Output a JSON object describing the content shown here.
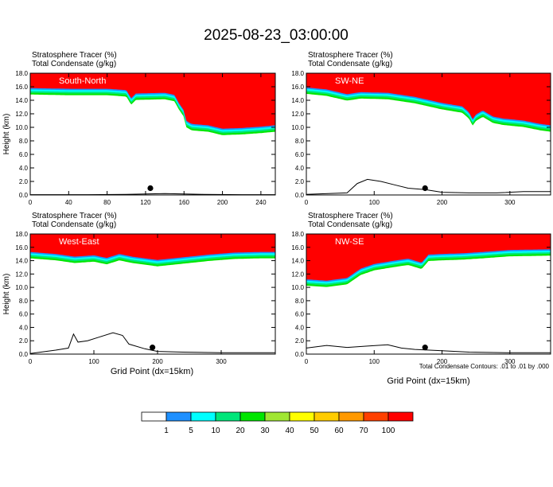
{
  "figure": {
    "title": "2025-08-23_03:00:00",
    "footnote": "Total Condensate Contours: .01 to .01 by .000"
  },
  "chart_data": [
    {
      "type": "heatmap",
      "panel_label": "South-North",
      "line1": "Stratosphere Tracer   (%)",
      "line2": "Total Condensate   (g/kg)",
      "ylabel": "Height (km)",
      "xlabel": "",
      "xlim": [
        0,
        255
      ],
      "ylim": [
        0,
        18
      ],
      "xticks": [
        0,
        40,
        80,
        120,
        160,
        200,
        240
      ],
      "yticks": [
        0.0,
        2.0,
        4.0,
        6.0,
        8.0,
        10.0,
        12.0,
        14.0,
        16.0,
        18.0
      ],
      "tropopause_km": [
        [
          0,
          15.8
        ],
        [
          40,
          15.7
        ],
        [
          80,
          15.7
        ],
        [
          90,
          15.6
        ],
        [
          100,
          15.5
        ],
        [
          105,
          14.3
        ],
        [
          110,
          15.0
        ],
        [
          140,
          15.1
        ],
        [
          150,
          14.8
        ],
        [
          155,
          13.5
        ],
        [
          160,
          12.5
        ],
        [
          162,
          11.0
        ],
        [
          168,
          10.5
        ],
        [
          185,
          10.3
        ],
        [
          200,
          9.8
        ],
        [
          220,
          9.9
        ],
        [
          240,
          10.1
        ],
        [
          255,
          10.3
        ]
      ],
      "terrain_km": [
        [
          0,
          0.05
        ],
        [
          60,
          0.05
        ],
        [
          100,
          0.1
        ],
        [
          140,
          0.2
        ],
        [
          180,
          0.1
        ],
        [
          220,
          0.05
        ],
        [
          255,
          0.05
        ]
      ],
      "marker_x": 125
    },
    {
      "type": "heatmap",
      "panel_label": "SW-NE",
      "line1": "Stratosphere Tracer   (%)",
      "line2": "Total Condensate   (g/kg)",
      "ylabel": "",
      "xlabel": "",
      "xlim": [
        0,
        360
      ],
      "ylim": [
        0,
        18
      ],
      "xticks": [
        0,
        100,
        200,
        300
      ],
      "yticks": [
        0.0,
        2.0,
        4.0,
        6.0,
        8.0,
        10.0,
        12.0,
        14.0,
        16.0,
        18.0
      ],
      "tropopause_km": [
        [
          0,
          15.9
        ],
        [
          30,
          15.6
        ],
        [
          60,
          14.9
        ],
        [
          80,
          15.2
        ],
        [
          120,
          15.1
        ],
        [
          160,
          14.5
        ],
        [
          200,
          13.6
        ],
        [
          230,
          13.1
        ],
        [
          240,
          12.2
        ],
        [
          245,
          11.2
        ],
        [
          250,
          11.9
        ],
        [
          260,
          12.5
        ],
        [
          275,
          11.6
        ],
        [
          290,
          11.3
        ],
        [
          320,
          11.0
        ],
        [
          345,
          10.5
        ],
        [
          360,
          10.3
        ]
      ],
      "terrain_km": [
        [
          0,
          0.1
        ],
        [
          60,
          0.3
        ],
        [
          75,
          1.7
        ],
        [
          90,
          2.3
        ],
        [
          110,
          2.0
        ],
        [
          130,
          1.5
        ],
        [
          150,
          1.0
        ],
        [
          175,
          0.8
        ],
        [
          200,
          0.4
        ],
        [
          240,
          0.3
        ],
        [
          280,
          0.3
        ],
        [
          320,
          0.5
        ],
        [
          360,
          0.5
        ]
      ],
      "marker_x": 175
    },
    {
      "type": "heatmap",
      "panel_label": "West-East",
      "line1": "Stratosphere Tracer   (%)",
      "line2": "Total Condensate   (g/kg)",
      "ylabel": "Height (km)",
      "xlabel": "",
      "xlim": [
        0,
        385
      ],
      "ylim": [
        0,
        18
      ],
      "xticks": [
        0,
        100,
        200,
        300
      ],
      "yticks": [
        0.0,
        2.0,
        4.0,
        6.0,
        8.0,
        10.0,
        12.0,
        14.0,
        16.0,
        18.0
      ],
      "tropopause_km": [
        [
          0,
          15.3
        ],
        [
          40,
          15.0
        ],
        [
          70,
          14.6
        ],
        [
          100,
          14.8
        ],
        [
          120,
          14.4
        ],
        [
          140,
          15.0
        ],
        [
          160,
          14.6
        ],
        [
          200,
          14.1
        ],
        [
          240,
          14.5
        ],
        [
          280,
          14.9
        ],
        [
          320,
          15.2
        ],
        [
          360,
          15.3
        ],
        [
          385,
          15.3
        ]
      ],
      "terrain_km": [
        [
          0,
          0.1
        ],
        [
          40,
          0.6
        ],
        [
          60,
          0.9
        ],
        [
          68,
          3.0
        ],
        [
          75,
          1.8
        ],
        [
          90,
          2.0
        ],
        [
          110,
          2.6
        ],
        [
          130,
          3.2
        ],
        [
          145,
          2.8
        ],
        [
          155,
          1.5
        ],
        [
          180,
          0.8
        ],
        [
          200,
          0.4
        ],
        [
          240,
          0.3
        ],
        [
          300,
          0.2
        ],
        [
          385,
          0.2
        ]
      ],
      "marker_x": 192
    },
    {
      "type": "heatmap",
      "panel_label": "NW-SE",
      "line1": "Stratosphere Tracer   (%)",
      "line2": "Total Condensate   (g/kg)",
      "ylabel": "",
      "xlabel": "Grid Point (dx=15km)",
      "xlim": [
        0,
        360
      ],
      "ylim": [
        0,
        18
      ],
      "xticks": [
        0,
        100,
        200,
        300
      ],
      "yticks": [
        0.0,
        2.0,
        4.0,
        6.0,
        8.0,
        10.0,
        12.0,
        14.0,
        16.0,
        18.0
      ],
      "tropopause_km": [
        [
          0,
          11.2
        ],
        [
          30,
          11.0
        ],
        [
          60,
          11.4
        ],
        [
          80,
          12.8
        ],
        [
          100,
          13.5
        ],
        [
          130,
          14.0
        ],
        [
          150,
          14.3
        ],
        [
          170,
          13.7
        ],
        [
          180,
          14.9
        ],
        [
          200,
          15.0
        ],
        [
          230,
          15.1
        ],
        [
          260,
          15.3
        ],
        [
          300,
          15.6
        ],
        [
          360,
          15.7
        ]
      ],
      "terrain_km": [
        [
          0,
          0.9
        ],
        [
          30,
          1.3
        ],
        [
          60,
          1.0
        ],
        [
          90,
          1.2
        ],
        [
          120,
          1.4
        ],
        [
          140,
          0.9
        ],
        [
          160,
          0.7
        ],
        [
          200,
          0.5
        ],
        [
          240,
          0.3
        ],
        [
          300,
          0.2
        ],
        [
          360,
          0.2
        ]
      ],
      "marker_x": 175
    }
  ],
  "colorbar": {
    "labels": [
      "1",
      "5",
      "10",
      "20",
      "30",
      "40",
      "50",
      "60",
      "70",
      "100"
    ],
    "colors": [
      "#ffffff",
      "#1e90ff",
      "#00ffff",
      "#00e67a",
      "#00e600",
      "#a0e632",
      "#ffff00",
      "#ffcc00",
      "#ff9900",
      "#ff4000",
      "#ff0000"
    ]
  },
  "left_xlabel": "Grid Point (dx=15km)"
}
